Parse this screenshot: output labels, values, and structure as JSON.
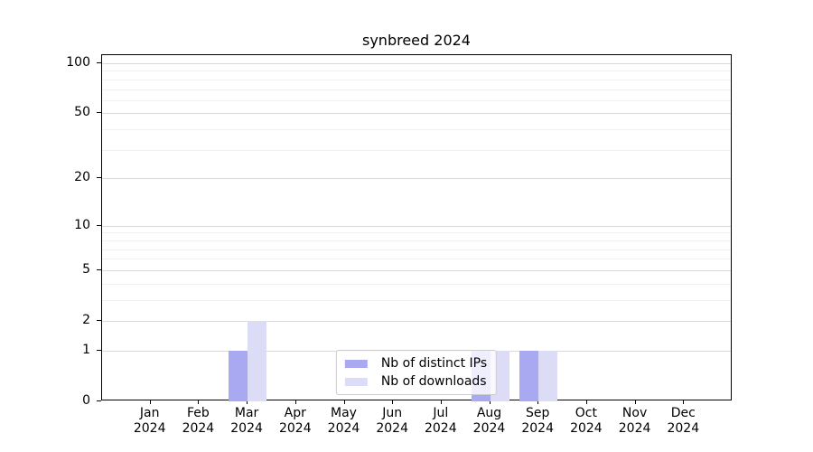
{
  "chart_data": {
    "type": "bar",
    "title": "synbreed 2024",
    "x": [
      "Jan",
      "Feb",
      "Mar",
      "Apr",
      "May",
      "Jun",
      "Jul",
      "Aug",
      "Sep",
      "Oct",
      "Nov",
      "Dec"
    ],
    "x_year": "2024",
    "series": [
      {
        "name": "Nb of distinct IPs",
        "color": "#a9a9f1",
        "values": [
          0,
          0,
          1,
          0,
          0,
          0,
          0,
          1,
          1,
          0,
          0,
          0
        ]
      },
      {
        "name": "Nb of downloads",
        "color": "#dcdcf6",
        "values": [
          0,
          0,
          2,
          0,
          0,
          0,
          0,
          1,
          1,
          0,
          0,
          0
        ]
      }
    ],
    "y_axis": {
      "scale": "log1p",
      "ticks": [
        0,
        1,
        2,
        5,
        10,
        20,
        50,
        100
      ],
      "minor_ticks": [
        3,
        4,
        6,
        7,
        8,
        9,
        30,
        40,
        60,
        70,
        80,
        90
      ],
      "ylim": [
        0,
        112
      ]
    },
    "legend": {
      "position": "lower center"
    },
    "grid": true,
    "colors": {
      "grid_major": "#d9d9d9",
      "grid_minor": "#f1f1f1",
      "spine": "#000000",
      "background": "#ffffff"
    }
  }
}
